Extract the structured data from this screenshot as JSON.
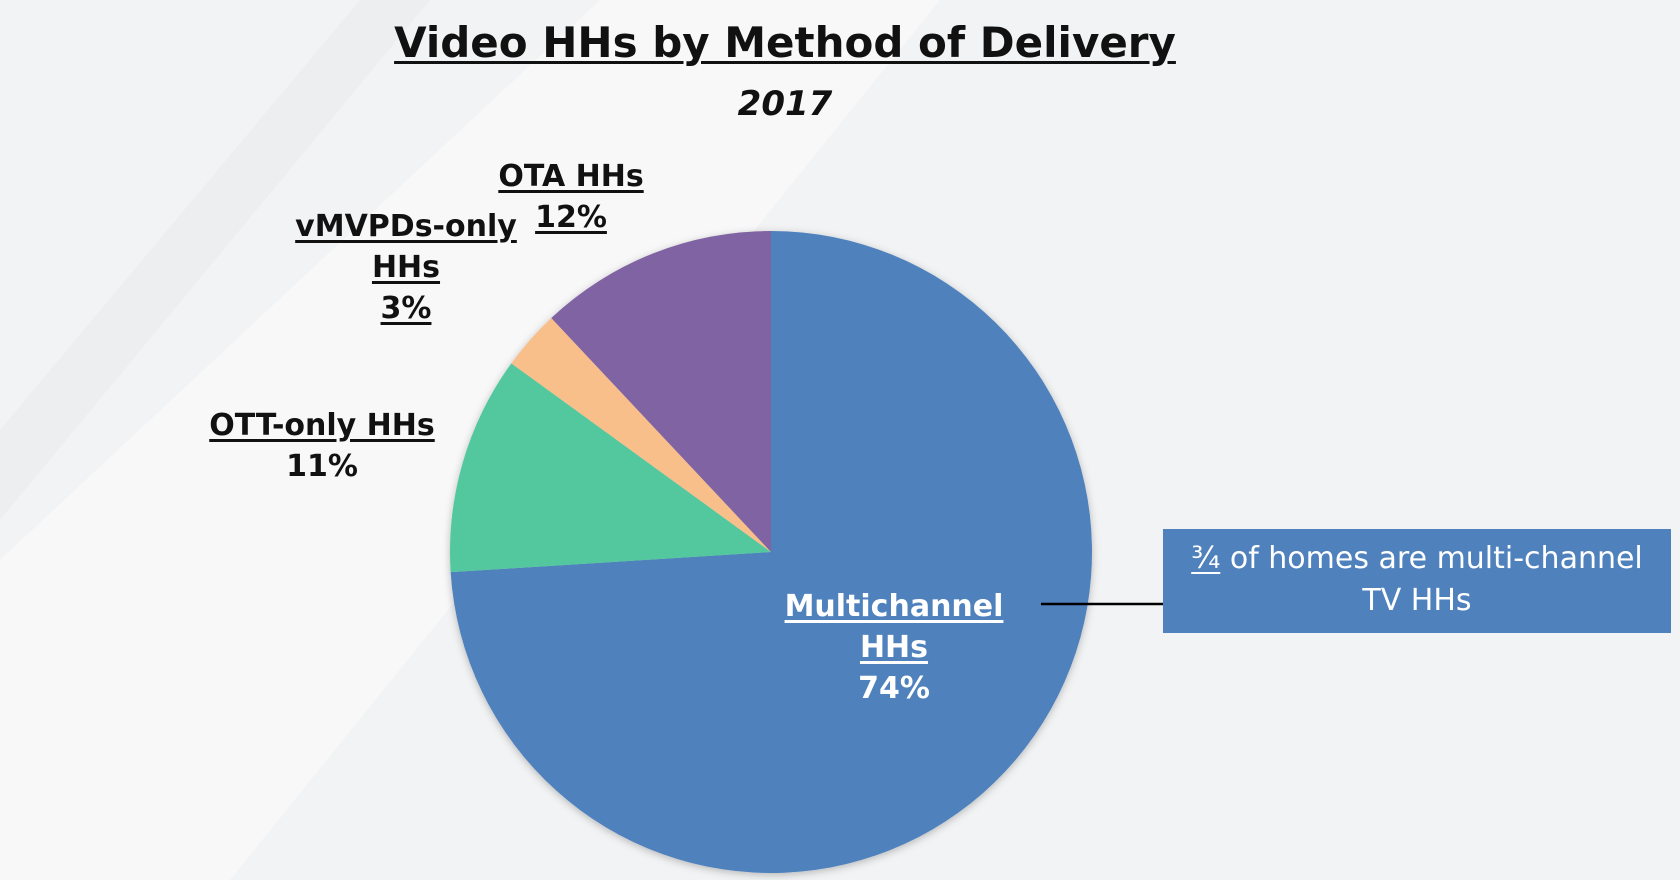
{
  "chart_data": {
    "type": "pie",
    "title": "Video HHs by Method of Delivery",
    "subtitle": "2017",
    "categories": [
      "Multichannel HHs",
      "OTT-only HHs",
      "vMVPDs-only HHs",
      "OTA HHs"
    ],
    "values": [
      74,
      11,
      3,
      12
    ],
    "value_labels": [
      "74%",
      "11%",
      "3%",
      "12%"
    ],
    "colors": [
      "#4f81bd",
      "#52c89e",
      "#f9bf8a",
      "#8064a2"
    ],
    "annotation": {
      "fraction": "¾",
      "text": "of homes are multi-channel TV HHs"
    }
  }
}
